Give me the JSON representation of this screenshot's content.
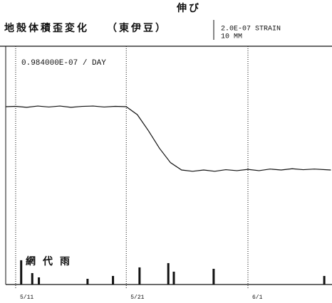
{
  "chart_data": {
    "type": "line",
    "header": "伸び",
    "title": "地殻体積歪変化",
    "subtitle": "（東伊豆）",
    "scale_strain": "2.0E-07 STRAIN",
    "scale_rain": "10 MM",
    "annotation": "0.984000E-07 / DAY",
    "rain_label": "網代雨",
    "x": [
      -0.9,
      0,
      1,
      2,
      3,
      4,
      5,
      6,
      7,
      8,
      9,
      10,
      11,
      12,
      13,
      14,
      15,
      16,
      17,
      18,
      19,
      20,
      21,
      22,
      23,
      24,
      25,
      26,
      27,
      28.5
    ],
    "xlim": [
      -0.9,
      28.6
    ],
    "xticks": [
      {
        "value": 0,
        "label": "5/11"
      },
      {
        "value": 10,
        "label": "5/21"
      },
      {
        "value": 21,
        "label": "6/1"
      }
    ],
    "ylim": [
      -5.56e-07,
      1.89e-07
    ],
    "y2lim": [
      0,
      167
    ],
    "series": [
      {
        "color": "#111",
        "values": [
          0,
          1e-09,
          -2e-09,
          2e-09,
          -1e-09,
          2e-09,
          -2e-09,
          1e-09,
          2e-09,
          -1e-09,
          1e-09,
          0,
          -2.5e-08,
          -7.5e-08,
          -1.3e-07,
          -1.75e-07,
          -1.98e-07,
          -2.02e-07,
          -1.98e-07,
          -2.02e-07,
          -1.97e-07,
          -2e-07,
          -1.96e-07,
          -2e-07,
          -1.95e-07,
          -1.98e-07,
          -1.94e-07,
          -1.97e-07,
          -1.95e-07,
          -1.98e-07
        ]
      },
      {
        "axis": "y2",
        "type": "bar",
        "color": "#111",
        "x": [
          0.5,
          1.5,
          2.1,
          6.5,
          8.8,
          11.2,
          13.8,
          14.3,
          17.9,
          27.9
        ],
        "values": [
          17,
          8,
          5,
          4,
          6,
          12,
          15,
          9,
          11,
          6
        ]
      }
    ]
  }
}
